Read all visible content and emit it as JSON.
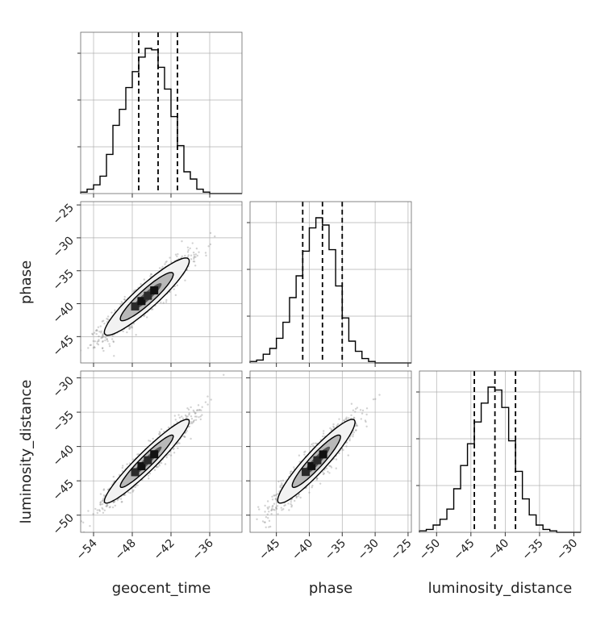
{
  "chart_data": {
    "type": "corner",
    "parameters": [
      "geocent_time",
      "phase",
      "luminosity_distance"
    ],
    "axis_labels": {
      "x": [
        "geocent_time",
        "phase",
        "luminosity_distance"
      ],
      "y": [
        "",
        "phase",
        "luminosity_distance"
      ]
    },
    "ranges": {
      "geocent_time": [
        -56,
        -31
      ],
      "phase": [
        -49,
        -24.5
      ],
      "luminosity_distance": [
        -52.5,
        -29
      ]
    },
    "ticks": {
      "geocent_time": [
        -54,
        -48,
        -42,
        -36
      ],
      "phase": [
        -45,
        -40,
        -35,
        -30,
        -25
      ],
      "luminosity_distance": [
        -50,
        -45,
        -40,
        -35,
        -30
      ]
    },
    "tick_labels": {
      "geocent_time": [
        "−54",
        "−48",
        "−42",
        "−36"
      ],
      "phase": [
        "−45",
        "−40",
        "−35",
        "−30",
        "−25"
      ],
      "luminosity_distance": [
        "−50",
        "−45",
        "−40",
        "−35",
        "−30"
      ]
    },
    "quantiles": {
      "geocent_time": [
        -47,
        -44,
        -41
      ],
      "phase": [
        -41,
        -38,
        -35
      ],
      "luminosity_distance": [
        -44.5,
        -41.5,
        -38.5
      ]
    },
    "histograms": {
      "geocent_time": {
        "edges": [
          -56,
          -55,
          -54,
          -53,
          -52,
          -51,
          -50,
          -49,
          -48,
          -47,
          -46,
          -45,
          -44,
          -43,
          -42,
          -41,
          -40,
          -39,
          -38,
          -37,
          -36,
          -35,
          -34,
          -33,
          -32,
          -31
        ],
        "counts": [
          1,
          3,
          6,
          12,
          27,
          47,
          58,
          73,
          84,
          94,
          100,
          99,
          87,
          72,
          53,
          33,
          15,
          10,
          3,
          1,
          0,
          0,
          0,
          0,
          0
        ]
      },
      "phase": {
        "edges": [
          -49,
          -48,
          -47,
          -46,
          -45,
          -44,
          -43,
          -42,
          -41,
          -40,
          -39,
          -38,
          -37,
          -36,
          -35,
          -34,
          -33,
          -32,
          -31,
          -30,
          -29,
          -28,
          -27,
          -26,
          -25,
          -24.5
        ],
        "counts": [
          1,
          2,
          6,
          10,
          17,
          28,
          45,
          60,
          77,
          93,
          100,
          95,
          78,
          53,
          31,
          15,
          8,
          3,
          1,
          0,
          0,
          0,
          0,
          0,
          0
        ]
      },
      "luminosity_distance": {
        "edges": [
          -52.5,
          -51.5,
          -50.5,
          -49.5,
          -48.5,
          -47.5,
          -46.5,
          -45.5,
          -44.5,
          -43.5,
          -42.5,
          -41.5,
          -40.5,
          -39.5,
          -38.5,
          -37.5,
          -36.5,
          -35.5,
          -34.5,
          -33.5,
          -32.5,
          -31.5,
          -30.5,
          -29.5,
          -29
        ],
        "counts": [
          1,
          2,
          5,
          9,
          16,
          30,
          46,
          61,
          76,
          89,
          100,
          98,
          86,
          63,
          42,
          23,
          12,
          5,
          2,
          1,
          0,
          0,
          0,
          0
        ]
      }
    },
    "scatter_2d": [
      {
        "x": "geocent_time",
        "y": "phase",
        "correlation": 0.92
      },
      {
        "x": "geocent_time",
        "y": "luminosity_distance",
        "correlation": 0.95
      },
      {
        "x": "phase",
        "y": "luminosity_distance",
        "correlation": 0.93
      }
    ],
    "grid": true,
    "legend": "none"
  },
  "colors": {
    "line": "#000000",
    "grid": "#b0b0b0",
    "points": "#7f7f7f",
    "contour_fill_low": "#ffffff",
    "contour_fill_high": "#000000",
    "quantile_line": "#000000"
  }
}
